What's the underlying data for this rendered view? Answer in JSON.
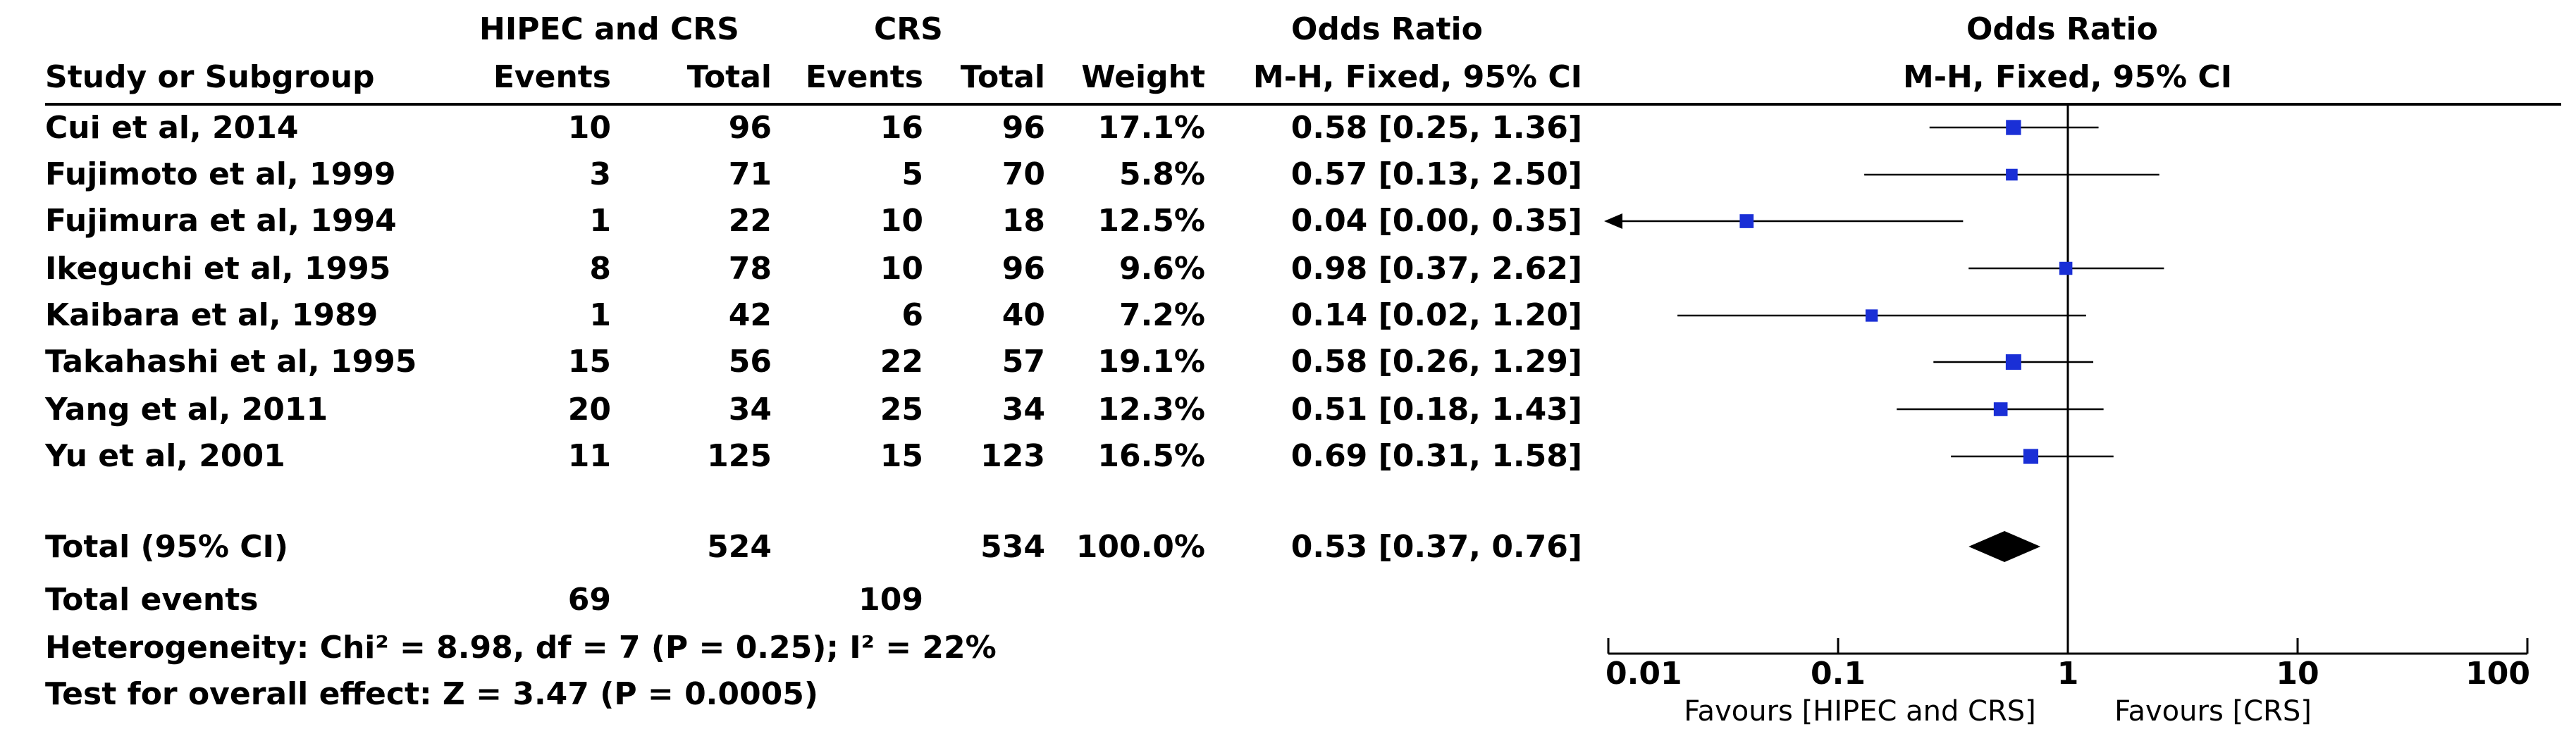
{
  "header": {
    "group1": "HIPEC and CRS",
    "group2": "CRS",
    "or_table_title": "Odds Ratio",
    "or_plot_title": "Odds Ratio",
    "col_study": "Study or Subgroup",
    "col_events1": "Events",
    "col_total1": "Total",
    "col_events2": "Events",
    "col_total2": "Total",
    "col_weight": "Weight",
    "col_method": "M-H, Fixed, 95% CI",
    "plot_method": "M-H, Fixed, 95% CI"
  },
  "studies": [
    {
      "name": "Cui et al, 2014",
      "events1": "10",
      "total1": "96",
      "events2": "16",
      "total2": "96",
      "weight": "17.1%",
      "ci_text": "0.58 [0.25, 1.36]"
    },
    {
      "name": "Fujimoto et al, 1999",
      "events1": "3",
      "total1": "71",
      "events2": "5",
      "total2": "70",
      "weight": "5.8%",
      "ci_text": "0.57 [0.13, 2.50]"
    },
    {
      "name": "Fujimura et al, 1994",
      "events1": "1",
      "total1": "22",
      "events2": "10",
      "total2": "18",
      "weight": "12.5%",
      "ci_text": "0.04 [0.00, 0.35]"
    },
    {
      "name": "Ikeguchi et al, 1995",
      "events1": "8",
      "total1": "78",
      "events2": "10",
      "total2": "96",
      "weight": "9.6%",
      "ci_text": "0.98 [0.37, 2.62]"
    },
    {
      "name": "Kaibara et al, 1989",
      "events1": "1",
      "total1": "42",
      "events2": "6",
      "total2": "40",
      "weight": "7.2%",
      "ci_text": "0.14 [0.02, 1.20]"
    },
    {
      "name": "Takahashi et al, 1995",
      "events1": "15",
      "total1": "56",
      "events2": "22",
      "total2": "57",
      "weight": "19.1%",
      "ci_text": "0.58 [0.26, 1.29]"
    },
    {
      "name": "Yang et al, 2011",
      "events1": "20",
      "total1": "34",
      "events2": "25",
      "total2": "34",
      "weight": "12.3%",
      "ci_text": "0.51 [0.18, 1.43]"
    },
    {
      "name": "Yu et al, 2001",
      "events1": "11",
      "total1": "125",
      "events2": "15",
      "total2": "123",
      "weight": "16.5%",
      "ci_text": "0.69 [0.31, 1.58]"
    }
  ],
  "total": {
    "label": "Total (95% CI)",
    "total1": "524",
    "total2": "534",
    "weight": "100.0%",
    "ci_text": "0.53 [0.37, 0.76]"
  },
  "total_events": {
    "label": "Total events",
    "events1": "69",
    "events2": "109"
  },
  "heterogeneity": "Heterogeneity: Chi² = 8.98, df = 7 (P = 0.25); I² = 22%",
  "overall_effect": "Test for overall effect: Z = 3.47 (P = 0.0005)",
  "axis": {
    "ticks": [
      "0.01",
      "0.1",
      "1",
      "10",
      "100"
    ],
    "favours_left": "Favours [HIPEC and CRS]",
    "favours_right": "Favours [CRS]"
  },
  "chart_data": {
    "type": "forest",
    "scale": "log",
    "xlim": [
      0.01,
      100
    ],
    "reference_line": 1,
    "series": [
      {
        "name": "Cui et al, 2014",
        "or": 0.58,
        "lo": 0.25,
        "hi": 1.36,
        "weight": 17.1
      },
      {
        "name": "Fujimoto et al, 1999",
        "or": 0.57,
        "lo": 0.13,
        "hi": 2.5,
        "weight": 5.8
      },
      {
        "name": "Fujimura et al, 1994",
        "or": 0.04,
        "lo": 0.0,
        "hi": 0.35,
        "weight": 12.5,
        "lower_truncated": true
      },
      {
        "name": "Ikeguchi et al, 1995",
        "or": 0.98,
        "lo": 0.37,
        "hi": 2.62,
        "weight": 9.6
      },
      {
        "name": "Kaibara et al, 1989",
        "or": 0.14,
        "lo": 0.02,
        "hi": 1.2,
        "weight": 7.2
      },
      {
        "name": "Takahashi et al, 1995",
        "or": 0.58,
        "lo": 0.26,
        "hi": 1.29,
        "weight": 19.1
      },
      {
        "name": "Yang et al, 2011",
        "or": 0.51,
        "lo": 0.18,
        "hi": 1.43,
        "weight": 12.3
      },
      {
        "name": "Yu et al, 2001",
        "or": 0.69,
        "lo": 0.31,
        "hi": 1.58,
        "weight": 16.5
      }
    ],
    "pooled": {
      "or": 0.53,
      "lo": 0.37,
      "hi": 0.76
    },
    "colors": {
      "marker": "#1a2fd6",
      "line": "#000000",
      "diamond": "#000000"
    }
  }
}
